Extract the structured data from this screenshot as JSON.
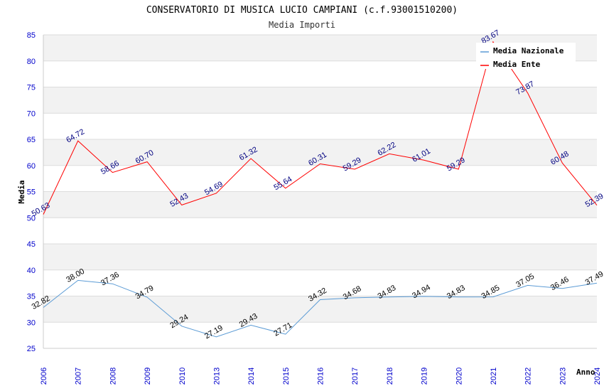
{
  "chart_data": {
    "type": "line",
    "title": "CONSERVATORIO DI MUSICA LUCIO CAMPIANI (c.f.93001510200)",
    "subtitle": "Media Importi",
    "ylabel": "Media",
    "xlabel": "Anno",
    "ylim": [
      25,
      85
    ],
    "yticks": [
      25,
      30,
      35,
      40,
      45,
      50,
      55,
      60,
      65,
      70,
      75,
      80,
      85
    ],
    "categories": [
      "2006",
      "2007",
      "2008",
      "2009",
      "2010",
      "2013",
      "2014",
      "2015",
      "2016",
      "2017",
      "2018",
      "2019",
      "2020",
      "2021",
      "2022",
      "2023",
      "2024"
    ],
    "series": [
      {
        "name": "Media Nazionale",
        "color": "#5b9bd5",
        "labelColor": "#000000",
        "values": [
          32.82,
          38.0,
          37.36,
          34.79,
          29.24,
          27.19,
          29.43,
          27.71,
          34.32,
          34.68,
          34.83,
          34.94,
          34.83,
          34.85,
          37.05,
          36.46,
          37.49
        ],
        "labels": [
          "32.82",
          "38.00",
          "37.36",
          "34.79",
          "29.24",
          "27.19",
          "29.43",
          "27.71",
          "34.32",
          "34.68",
          "34.83",
          "34.94",
          "34.83",
          "34.85",
          "37.05",
          "36.46",
          "37.49"
        ]
      },
      {
        "name": "Media Ente",
        "color": "#ff0000",
        "labelColor": "#000080",
        "values": [
          50.63,
          64.72,
          58.66,
          60.7,
          52.43,
          54.69,
          61.32,
          55.64,
          60.31,
          59.29,
          62.22,
          61.01,
          59.29,
          83.67,
          73.87,
          60.48,
          52.39
        ],
        "labels": [
          "50.63",
          "64.72",
          "58.66",
          "60.70",
          "52.43",
          "54.69",
          "61.32",
          "55.64",
          "60.31",
          "59.29",
          "62.22",
          "61.01",
          "59.29",
          "83.67",
          "73.87",
          "60.48",
          "52.39"
        ]
      }
    ],
    "grid": true,
    "legend": "top-right"
  }
}
